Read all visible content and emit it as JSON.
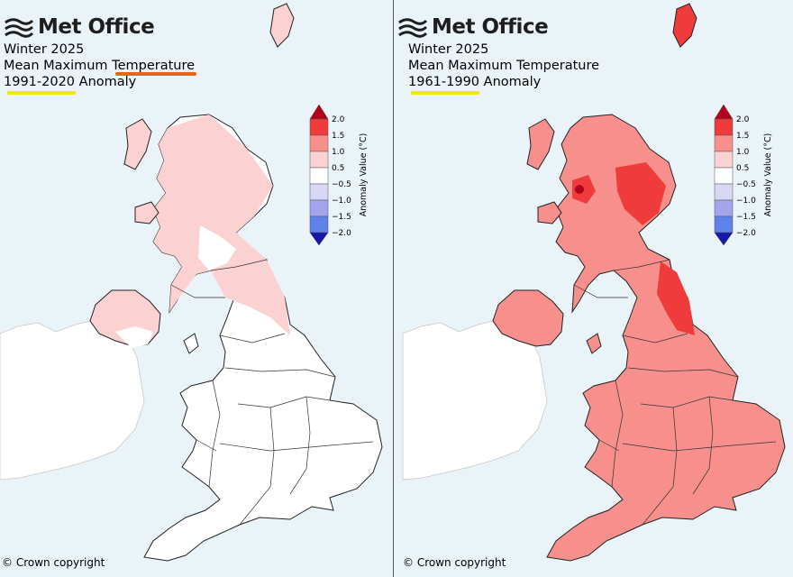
{
  "panels": [
    {
      "logo": "Met Office",
      "season": "Winter 2025",
      "variable": "Mean Maximum Temperature",
      "baseline": "1991-2020 Anomaly",
      "copyright": "© Crown copyright",
      "dominant_band": "0.5 to 1.0 in Scotland / N Ireland / N England; -0.5 to 0.5 elsewhere"
    },
    {
      "logo": "Met Office",
      "season": "Winter 2025",
      "variable": "Mean Maximum Temperature",
      "baseline": "1961-1990 Anomaly",
      "copyright": "© Crown copyright",
      "dominant_band": "1.0 to 1.5 widely; 1.5 to 2.0 in NE Scotland and NE England"
    }
  ],
  "legend": {
    "title": "Anomaly Value (°C)",
    "ticks": [
      "2.0",
      "1.5",
      "1.0",
      "0.5",
      "−0.5",
      "−1.0",
      "−1.5",
      "−2.0"
    ],
    "colors": [
      "#b3001b",
      "#ef3b3b",
      "#f7908d",
      "#fcd1d1",
      "#ffffff",
      "#d8d8f5",
      "#a4a4ee",
      "#5f82ea",
      "#1717a8"
    ]
  },
  "annotations": {
    "underline_orange": "#e8641b",
    "underline_yellow": "#f4e800"
  },
  "colors": {
    "sea": "#e9f3f8",
    "ireland_land": "#ffffff",
    "outline": "#222222"
  }
}
